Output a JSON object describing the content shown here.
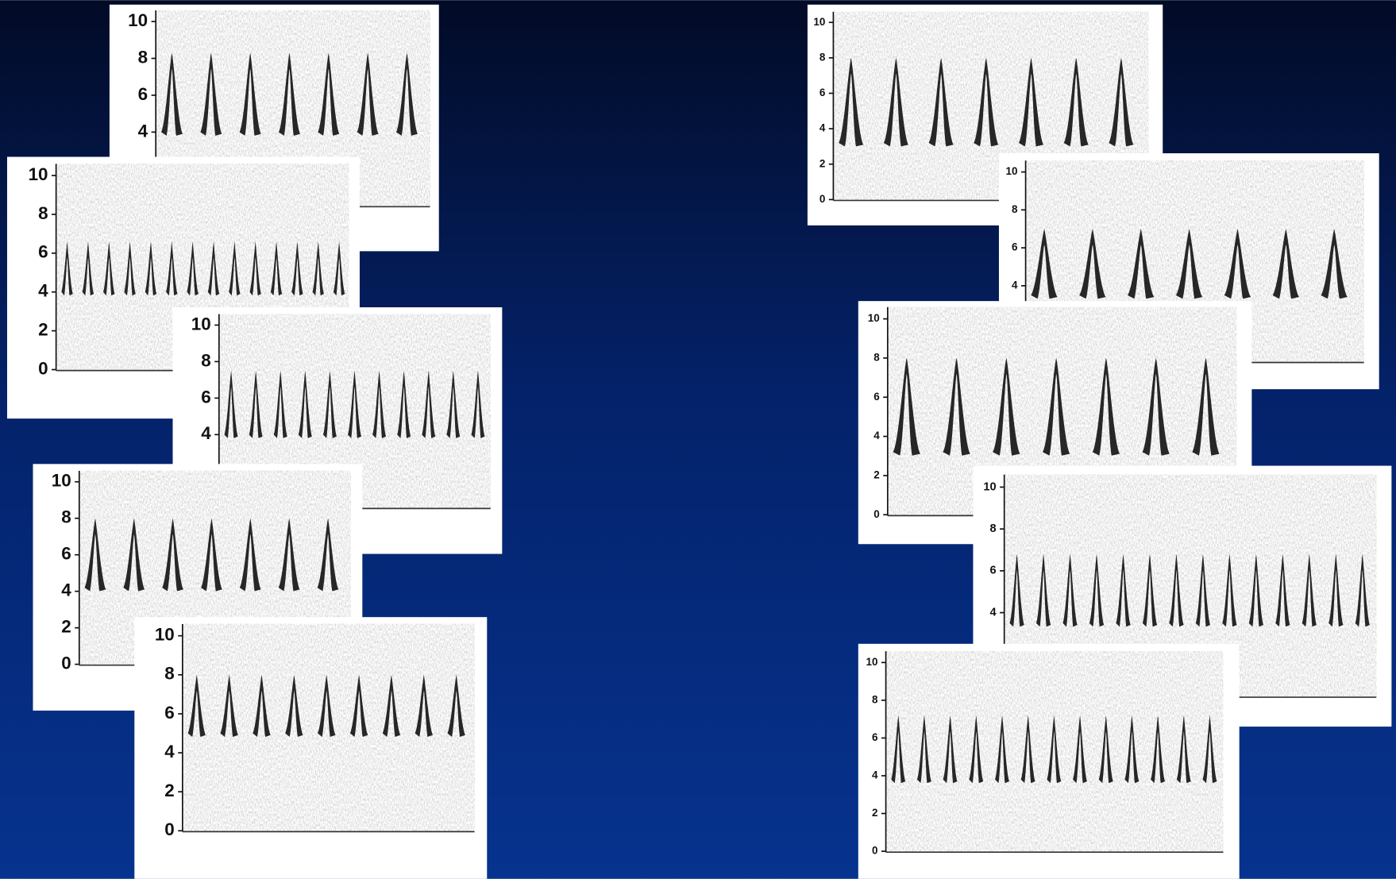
{
  "panels": [
    {
      "yticks": [
        10,
        8,
        6,
        4
      ]
    },
    {
      "yticks": [
        10,
        8,
        6,
        4,
        2,
        0
      ]
    },
    {
      "yticks": [
        10,
        8,
        6,
        4
      ]
    },
    {
      "yticks": [
        10,
        8,
        6,
        4,
        2,
        0
      ]
    },
    {
      "yticks": [
        10,
        8,
        6,
        4,
        2,
        0
      ]
    },
    {
      "yticks": [
        10,
        8,
        6,
        4,
        2,
        0
      ]
    },
    {
      "yticks": [
        10,
        8,
        6,
        4
      ]
    },
    {
      "yticks": [
        10,
        8,
        6,
        4,
        2,
        0
      ]
    },
    {
      "yticks": [
        10,
        8,
        6,
        4
      ]
    },
    {
      "yticks": [
        10,
        8,
        6,
        4,
        2,
        0
      ]
    }
  ]
}
